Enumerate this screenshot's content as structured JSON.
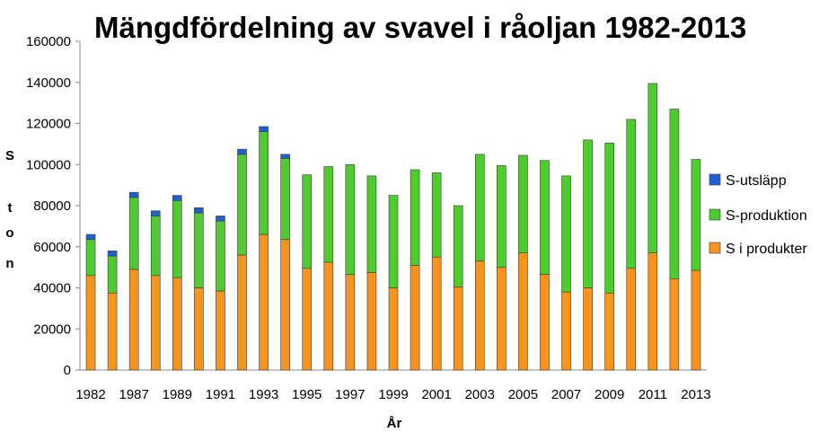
{
  "chart_data": {
    "type": "bar",
    "stacked": true,
    "title": "Mängdfördelning av svavel i råoljan 1982-2013",
    "xlabel": "År",
    "ylabel_chars": [
      "S",
      "t",
      "o",
      "n"
    ],
    "ylim": [
      0,
      160000
    ],
    "yticks": [
      "0",
      "20000",
      "40000",
      "60000",
      "80000",
      "100000",
      "120000",
      "140000",
      "160000"
    ],
    "tick_labels": [
      "1982",
      "1987",
      "1989",
      "1991",
      "1993",
      "1995",
      "1997",
      "1999",
      "2001",
      "2003",
      "2005",
      "2007",
      "2009",
      "2011",
      "2013"
    ],
    "categories": [
      "1982",
      "1985",
      "1987",
      "1988",
      "1989",
      "1990",
      "1991",
      "1992",
      "1993",
      "1994",
      "1995",
      "1996",
      "1997",
      "1998",
      "1999",
      "2000",
      "2001",
      "2002",
      "2003",
      "2004",
      "2005",
      "2006",
      "2007",
      "2008",
      "2009",
      "2010",
      "2011",
      "2012",
      "2013"
    ],
    "series": [
      {
        "name": "S i produkter",
        "color": "#f7941d",
        "values": [
          46000,
          37500,
          49000,
          46000,
          45000,
          40000,
          38500,
          56000,
          66000,
          63500,
          49500,
          52500,
          46500,
          47500,
          40000,
          51000,
          55000,
          40500,
          53000,
          50000,
          57000,
          46500,
          38000,
          40000,
          37500,
          49500,
          57000,
          44500,
          48500
        ]
      },
      {
        "name": "S-produktion",
        "color": "#4ecb2e",
        "values": [
          17500,
          18000,
          35000,
          29000,
          37500,
          36500,
          34000,
          49000,
          50000,
          39500,
          45500,
          46500,
          53500,
          47000,
          45000,
          46500,
          41000,
          39500,
          52000,
          49500,
          47500,
          55500,
          56500,
          72000,
          73000,
          72500,
          82500,
          82500,
          54000
        ]
      },
      {
        "name": "S-utsläpp",
        "color": "#1f5fd6",
        "values": [
          2500,
          2500,
          2500,
          2500,
          2500,
          2500,
          2500,
          2500,
          2500,
          2000,
          0,
          0,
          0,
          0,
          0,
          0,
          0,
          0,
          0,
          0,
          0,
          0,
          0,
          0,
          0,
          0,
          0,
          0,
          0
        ]
      }
    ],
    "legend_order": [
      "S-utsläpp",
      "S-produktion",
      "S i produkter"
    ],
    "legend_position": "right",
    "grid": false
  }
}
